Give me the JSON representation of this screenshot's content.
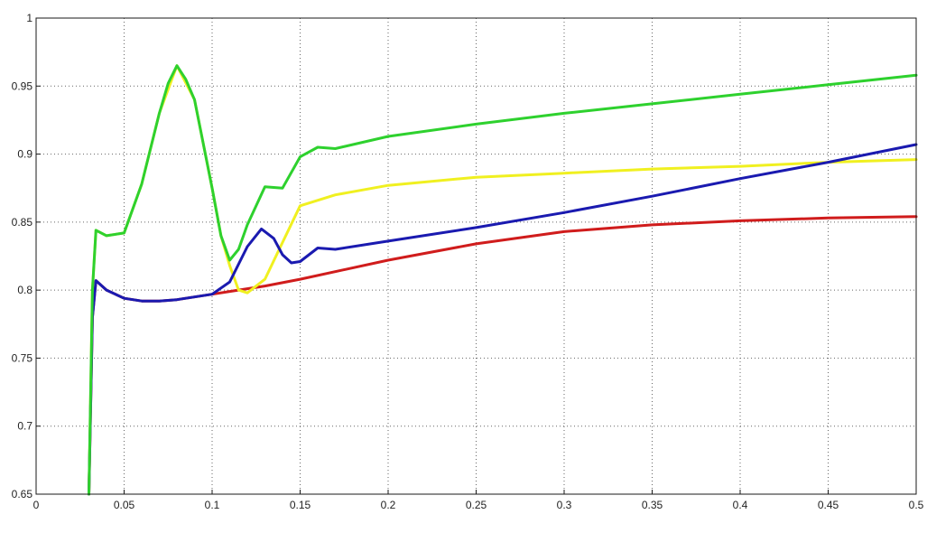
{
  "chart_data": {
    "type": "line",
    "title": "",
    "xlabel": "",
    "ylabel": "",
    "xlim": [
      0,
      0.5
    ],
    "ylim": [
      0.65,
      1
    ],
    "grid": true,
    "x_ticks": [
      0,
      0.05,
      0.1,
      0.15,
      0.2,
      0.25,
      0.3,
      0.35,
      0.4,
      0.45,
      0.5
    ],
    "x_tick_labels": [
      "0",
      "0.05",
      "0.1",
      "0.15",
      "0.2",
      "0.25",
      "0.3",
      "0.35",
      "0.4",
      "0.45",
      "0.5"
    ],
    "y_ticks": [
      0.65,
      0.7,
      0.75,
      0.8,
      0.85,
      0.9,
      0.95,
      1
    ],
    "y_tick_labels": [
      "0.65",
      "0.7",
      "0.75",
      "0.8",
      "0.85",
      "0.9",
      "0.95",
      "1"
    ],
    "series": [
      {
        "color": "#d01c1c",
        "x": [
          0.03,
          0.032,
          0.034,
          0.04,
          0.05,
          0.06,
          0.07,
          0.08,
          0.09,
          0.1,
          0.11,
          0.12,
          0.13,
          0.15,
          0.2,
          0.25,
          0.3,
          0.35,
          0.4,
          0.45,
          0.5
        ],
        "y": [
          0.65,
          0.78,
          0.807,
          0.8,
          0.794,
          0.792,
          0.792,
          0.793,
          0.795,
          0.797,
          0.799,
          0.801,
          0.803,
          0.808,
          0.822,
          0.834,
          0.843,
          0.848,
          0.851,
          0.853,
          0.854
        ]
      },
      {
        "color": "#f0f020",
        "x": [
          0.03,
          0.032,
          0.034,
          0.04,
          0.05,
          0.06,
          0.07,
          0.08,
          0.09,
          0.1,
          0.105,
          0.11,
          0.115,
          0.12,
          0.13,
          0.14,
          0.15,
          0.17,
          0.2,
          0.25,
          0.3,
          0.35,
          0.4,
          0.45,
          0.5
        ],
        "y": [
          0.65,
          0.8,
          0.844,
          0.84,
          0.842,
          0.878,
          0.93,
          0.965,
          0.94,
          0.875,
          0.84,
          0.818,
          0.8,
          0.798,
          0.808,
          0.835,
          0.862,
          0.87,
          0.877,
          0.883,
          0.886,
          0.889,
          0.891,
          0.894,
          0.896
        ]
      },
      {
        "color": "#1a1ab0",
        "x": [
          0.03,
          0.032,
          0.034,
          0.04,
          0.05,
          0.06,
          0.07,
          0.08,
          0.09,
          0.1,
          0.11,
          0.12,
          0.128,
          0.135,
          0.14,
          0.145,
          0.15,
          0.16,
          0.17,
          0.2,
          0.25,
          0.3,
          0.35,
          0.4,
          0.45,
          0.5
        ],
        "y": [
          0.65,
          0.78,
          0.807,
          0.8,
          0.794,
          0.792,
          0.792,
          0.793,
          0.795,
          0.797,
          0.806,
          0.832,
          0.845,
          0.838,
          0.826,
          0.82,
          0.821,
          0.831,
          0.83,
          0.836,
          0.846,
          0.857,
          0.869,
          0.882,
          0.894,
          0.907
        ]
      },
      {
        "color": "#2ed12e",
        "x": [
          0.03,
          0.032,
          0.034,
          0.04,
          0.05,
          0.06,
          0.07,
          0.075,
          0.08,
          0.085,
          0.09,
          0.1,
          0.105,
          0.11,
          0.115,
          0.12,
          0.13,
          0.14,
          0.15,
          0.16,
          0.17,
          0.2,
          0.25,
          0.3,
          0.35,
          0.4,
          0.45,
          0.5
        ],
        "y": [
          0.65,
          0.8,
          0.844,
          0.84,
          0.842,
          0.878,
          0.93,
          0.952,
          0.965,
          0.955,
          0.94,
          0.875,
          0.84,
          0.822,
          0.83,
          0.848,
          0.876,
          0.875,
          0.898,
          0.905,
          0.904,
          0.913,
          0.922,
          0.93,
          0.937,
          0.944,
          0.951,
          0.958
        ]
      }
    ]
  }
}
